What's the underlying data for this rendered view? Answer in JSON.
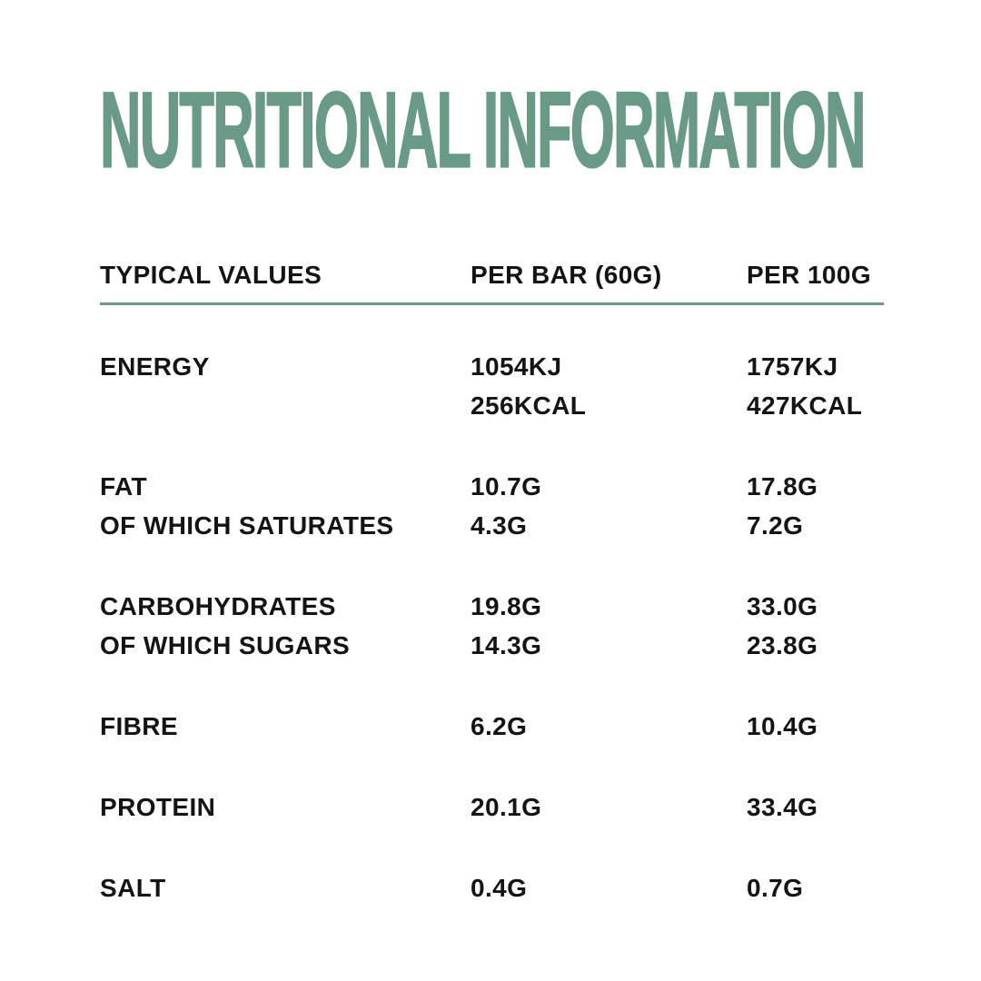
{
  "title": "NUTRITIONAL INFORMATION",
  "theme": {
    "accent_green": "#699a85",
    "divider_green": "#6d9884",
    "text_color": "#141414",
    "background": "#ffffff"
  },
  "table": {
    "columns": [
      "TYPICAL VALUES",
      "PER BAR (60G)",
      "PER 100G"
    ],
    "groups": [
      {
        "rows": [
          {
            "label": "ENERGY",
            "per_bar": "1054KJ",
            "per_100g": "1757KJ"
          },
          {
            "label": "",
            "per_bar": "256KCAL",
            "per_100g": "427KCAL"
          }
        ]
      },
      {
        "rows": [
          {
            "label": "FAT",
            "per_bar": "10.7G",
            "per_100g": "17.8G"
          },
          {
            "label": "OF WHICH SATURATES",
            "per_bar": "4.3G",
            "per_100g": "7.2G"
          }
        ]
      },
      {
        "rows": [
          {
            "label": "CARBOHYDRATES",
            "per_bar": "19.8G",
            "per_100g": "33.0G"
          },
          {
            "label": "OF WHICH SUGARS",
            "per_bar": "14.3G",
            "per_100g": "23.8G"
          }
        ]
      },
      {
        "rows": [
          {
            "label": "FIBRE",
            "per_bar": "6.2G",
            "per_100g": "10.4G"
          }
        ]
      },
      {
        "rows": [
          {
            "label": "PROTEIN",
            "per_bar": "20.1G",
            "per_100g": "33.4G"
          }
        ]
      },
      {
        "rows": [
          {
            "label": "SALT",
            "per_bar": "0.4G",
            "per_100g": "0.7G"
          }
        ]
      }
    ]
  }
}
